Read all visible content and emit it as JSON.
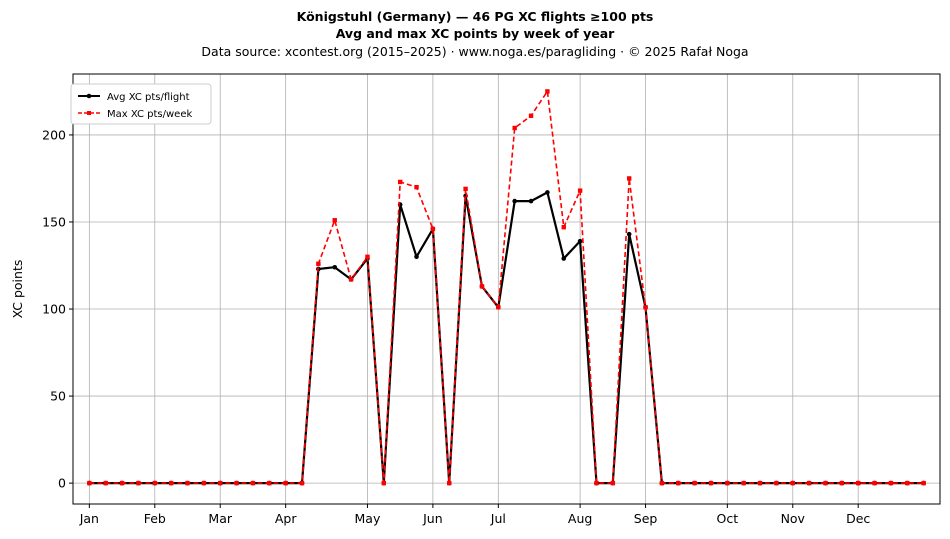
{
  "chart_data": {
    "type": "line",
    "title": "Königstuhl (Germany)  —  46 PG XC flights ≥100 pts",
    "subtitle": "Avg and max XC points by week of year",
    "source": "Data source: xcontest.org (2015–2025)  ·  www.noga.es/paragliding  ·  © 2025 Rafał Noga",
    "xlabel": "",
    "ylabel": "XC points",
    "xlim": [
      0,
      53
    ],
    "ylim": [
      -12,
      235
    ],
    "yticks": [
      0,
      50,
      100,
      150,
      200
    ],
    "grid": true,
    "legend_position": "top-left",
    "x_ticks": [
      {
        "label": "Jan",
        "week": 1
      },
      {
        "label": "Feb",
        "week": 5
      },
      {
        "label": "Mar",
        "week": 9
      },
      {
        "label": "Apr",
        "week": 13
      },
      {
        "label": "May",
        "week": 18
      },
      {
        "label": "Jun",
        "week": 22
      },
      {
        "label": "Jul",
        "week": 26
      },
      {
        "label": "Aug",
        "week": 31
      },
      {
        "label": "Sep",
        "week": 35
      },
      {
        "label": "Oct",
        "week": 40
      },
      {
        "label": "Nov",
        "week": 44
      },
      {
        "label": "Dec",
        "week": 48
      }
    ],
    "x": [
      1,
      2,
      3,
      4,
      5,
      6,
      7,
      8,
      9,
      10,
      11,
      12,
      13,
      14,
      15,
      16,
      17,
      18,
      19,
      20,
      21,
      22,
      23,
      24,
      25,
      26,
      27,
      28,
      29,
      30,
      31,
      32,
      33,
      34,
      35,
      36,
      37,
      38,
      39,
      40,
      41,
      42,
      43,
      44,
      45,
      46,
      47,
      48,
      49,
      50,
      51,
      52
    ],
    "series": [
      {
        "name": "Avg XC pts/flight",
        "color": "#000000",
        "style": "solid",
        "marker": "circle",
        "values": [
          0,
          0,
          0,
          0,
          0,
          0,
          0,
          0,
          0,
          0,
          0,
          0,
          0,
          0,
          123,
          124,
          117,
          129,
          0,
          160,
          130,
          146,
          0,
          165,
          113,
          101,
          162,
          162,
          167,
          129,
          139,
          0,
          0,
          143,
          101,
          0,
          0,
          0,
          0,
          0,
          0,
          0,
          0,
          0,
          0,
          0,
          0,
          0,
          0,
          0,
          0,
          0
        ]
      },
      {
        "name": "Max XC pts/week",
        "color": "#ff0000",
        "style": "dashed",
        "marker": "square",
        "values": [
          0,
          0,
          0,
          0,
          0,
          0,
          0,
          0,
          0,
          0,
          0,
          0,
          0,
          0,
          126,
          151,
          117,
          130,
          0,
          173,
          170,
          146,
          0,
          169,
          113,
          101,
          204,
          211,
          225,
          147,
          168,
          0,
          0,
          175,
          101,
          0,
          0,
          0,
          0,
          0,
          0,
          0,
          0,
          0,
          0,
          0,
          0,
          0,
          0,
          0,
          0,
          0
        ]
      }
    ]
  }
}
